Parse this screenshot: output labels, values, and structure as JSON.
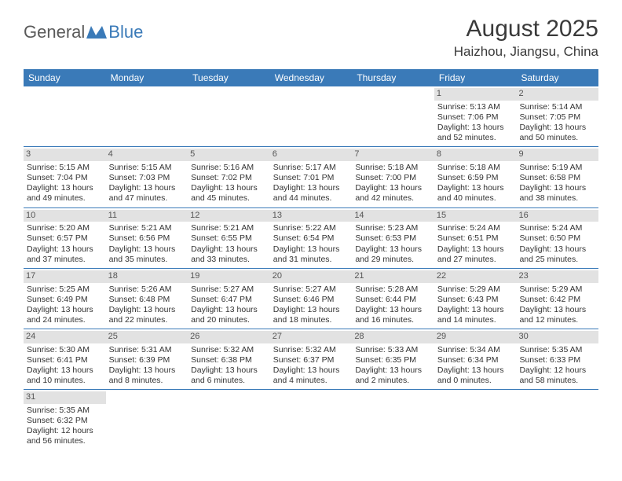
{
  "brand": {
    "part1": "General",
    "part2": "Blue"
  },
  "title": "August 2025",
  "location": "Haizhou, Jiangsu, China",
  "colors": {
    "header_bg": "#3a7ab8",
    "daynum_bg": "#e2e2e2",
    "text": "#333333",
    "border": "#3a7ab8"
  },
  "day_names": [
    "Sunday",
    "Monday",
    "Tuesday",
    "Wednesday",
    "Thursday",
    "Friday",
    "Saturday"
  ],
  "weeks": [
    [
      null,
      null,
      null,
      null,
      null,
      {
        "n": "1",
        "sr": "Sunrise: 5:13 AM",
        "ss": "Sunset: 7:06 PM",
        "d1": "Daylight: 13 hours",
        "d2": "and 52 minutes."
      },
      {
        "n": "2",
        "sr": "Sunrise: 5:14 AM",
        "ss": "Sunset: 7:05 PM",
        "d1": "Daylight: 13 hours",
        "d2": "and 50 minutes."
      }
    ],
    [
      {
        "n": "3",
        "sr": "Sunrise: 5:15 AM",
        "ss": "Sunset: 7:04 PM",
        "d1": "Daylight: 13 hours",
        "d2": "and 49 minutes."
      },
      {
        "n": "4",
        "sr": "Sunrise: 5:15 AM",
        "ss": "Sunset: 7:03 PM",
        "d1": "Daylight: 13 hours",
        "d2": "and 47 minutes."
      },
      {
        "n": "5",
        "sr": "Sunrise: 5:16 AM",
        "ss": "Sunset: 7:02 PM",
        "d1": "Daylight: 13 hours",
        "d2": "and 45 minutes."
      },
      {
        "n": "6",
        "sr": "Sunrise: 5:17 AM",
        "ss": "Sunset: 7:01 PM",
        "d1": "Daylight: 13 hours",
        "d2": "and 44 minutes."
      },
      {
        "n": "7",
        "sr": "Sunrise: 5:18 AM",
        "ss": "Sunset: 7:00 PM",
        "d1": "Daylight: 13 hours",
        "d2": "and 42 minutes."
      },
      {
        "n": "8",
        "sr": "Sunrise: 5:18 AM",
        "ss": "Sunset: 6:59 PM",
        "d1": "Daylight: 13 hours",
        "d2": "and 40 minutes."
      },
      {
        "n": "9",
        "sr": "Sunrise: 5:19 AM",
        "ss": "Sunset: 6:58 PM",
        "d1": "Daylight: 13 hours",
        "d2": "and 38 minutes."
      }
    ],
    [
      {
        "n": "10",
        "sr": "Sunrise: 5:20 AM",
        "ss": "Sunset: 6:57 PM",
        "d1": "Daylight: 13 hours",
        "d2": "and 37 minutes."
      },
      {
        "n": "11",
        "sr": "Sunrise: 5:21 AM",
        "ss": "Sunset: 6:56 PM",
        "d1": "Daylight: 13 hours",
        "d2": "and 35 minutes."
      },
      {
        "n": "12",
        "sr": "Sunrise: 5:21 AM",
        "ss": "Sunset: 6:55 PM",
        "d1": "Daylight: 13 hours",
        "d2": "and 33 minutes."
      },
      {
        "n": "13",
        "sr": "Sunrise: 5:22 AM",
        "ss": "Sunset: 6:54 PM",
        "d1": "Daylight: 13 hours",
        "d2": "and 31 minutes."
      },
      {
        "n": "14",
        "sr": "Sunrise: 5:23 AM",
        "ss": "Sunset: 6:53 PM",
        "d1": "Daylight: 13 hours",
        "d2": "and 29 minutes."
      },
      {
        "n": "15",
        "sr": "Sunrise: 5:24 AM",
        "ss": "Sunset: 6:51 PM",
        "d1": "Daylight: 13 hours",
        "d2": "and 27 minutes."
      },
      {
        "n": "16",
        "sr": "Sunrise: 5:24 AM",
        "ss": "Sunset: 6:50 PM",
        "d1": "Daylight: 13 hours",
        "d2": "and 25 minutes."
      }
    ],
    [
      {
        "n": "17",
        "sr": "Sunrise: 5:25 AM",
        "ss": "Sunset: 6:49 PM",
        "d1": "Daylight: 13 hours",
        "d2": "and 24 minutes."
      },
      {
        "n": "18",
        "sr": "Sunrise: 5:26 AM",
        "ss": "Sunset: 6:48 PM",
        "d1": "Daylight: 13 hours",
        "d2": "and 22 minutes."
      },
      {
        "n": "19",
        "sr": "Sunrise: 5:27 AM",
        "ss": "Sunset: 6:47 PM",
        "d1": "Daylight: 13 hours",
        "d2": "and 20 minutes."
      },
      {
        "n": "20",
        "sr": "Sunrise: 5:27 AM",
        "ss": "Sunset: 6:46 PM",
        "d1": "Daylight: 13 hours",
        "d2": "and 18 minutes."
      },
      {
        "n": "21",
        "sr": "Sunrise: 5:28 AM",
        "ss": "Sunset: 6:44 PM",
        "d1": "Daylight: 13 hours",
        "d2": "and 16 minutes."
      },
      {
        "n": "22",
        "sr": "Sunrise: 5:29 AM",
        "ss": "Sunset: 6:43 PM",
        "d1": "Daylight: 13 hours",
        "d2": "and 14 minutes."
      },
      {
        "n": "23",
        "sr": "Sunrise: 5:29 AM",
        "ss": "Sunset: 6:42 PM",
        "d1": "Daylight: 13 hours",
        "d2": "and 12 minutes."
      }
    ],
    [
      {
        "n": "24",
        "sr": "Sunrise: 5:30 AM",
        "ss": "Sunset: 6:41 PM",
        "d1": "Daylight: 13 hours",
        "d2": "and 10 minutes."
      },
      {
        "n": "25",
        "sr": "Sunrise: 5:31 AM",
        "ss": "Sunset: 6:39 PM",
        "d1": "Daylight: 13 hours",
        "d2": "and 8 minutes."
      },
      {
        "n": "26",
        "sr": "Sunrise: 5:32 AM",
        "ss": "Sunset: 6:38 PM",
        "d1": "Daylight: 13 hours",
        "d2": "and 6 minutes."
      },
      {
        "n": "27",
        "sr": "Sunrise: 5:32 AM",
        "ss": "Sunset: 6:37 PM",
        "d1": "Daylight: 13 hours",
        "d2": "and 4 minutes."
      },
      {
        "n": "28",
        "sr": "Sunrise: 5:33 AM",
        "ss": "Sunset: 6:35 PM",
        "d1": "Daylight: 13 hours",
        "d2": "and 2 minutes."
      },
      {
        "n": "29",
        "sr": "Sunrise: 5:34 AM",
        "ss": "Sunset: 6:34 PM",
        "d1": "Daylight: 13 hours",
        "d2": "and 0 minutes."
      },
      {
        "n": "30",
        "sr": "Sunrise: 5:35 AM",
        "ss": "Sunset: 6:33 PM",
        "d1": "Daylight: 12 hours",
        "d2": "and 58 minutes."
      }
    ],
    [
      {
        "n": "31",
        "sr": "Sunrise: 5:35 AM",
        "ss": "Sunset: 6:32 PM",
        "d1": "Daylight: 12 hours",
        "d2": "and 56 minutes."
      },
      null,
      null,
      null,
      null,
      null,
      null
    ]
  ]
}
